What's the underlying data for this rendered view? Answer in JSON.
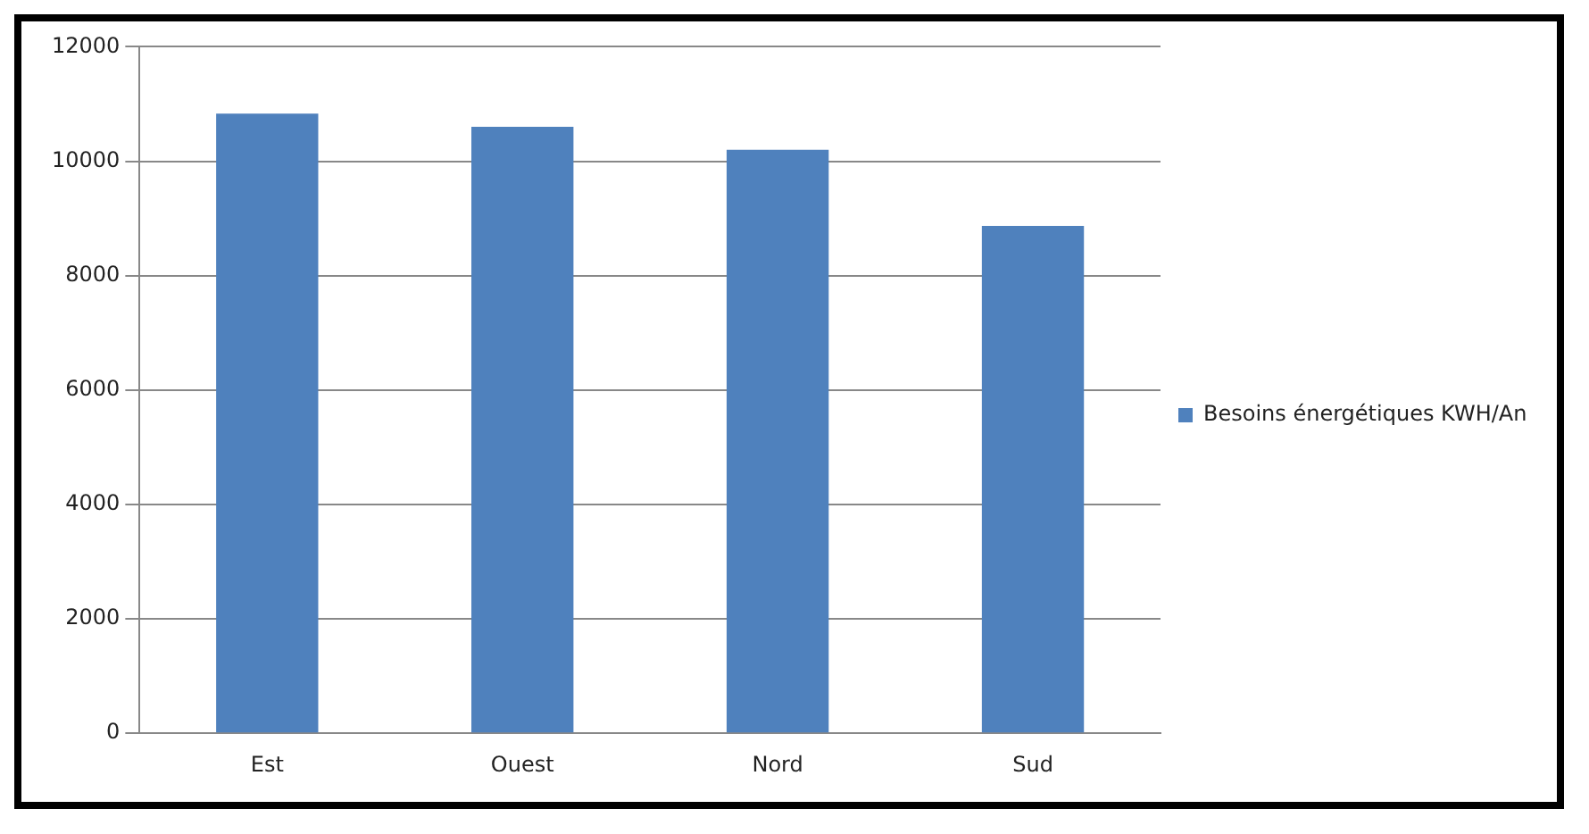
{
  "chart_data": {
    "type": "bar",
    "categories": [
      "Est",
      "Ouest",
      "Nord",
      "Sud"
    ],
    "series": [
      {
        "name": "Besoins énergétiques KWH/An",
        "color": "#4f81bd",
        "values": [
          10830,
          10600,
          10200,
          8870
        ]
      }
    ],
    "ylim": [
      0,
      12000
    ],
    "yticks": [
      0,
      2000,
      4000,
      6000,
      8000,
      10000,
      12000
    ],
    "grid": "y",
    "legend": "right"
  }
}
